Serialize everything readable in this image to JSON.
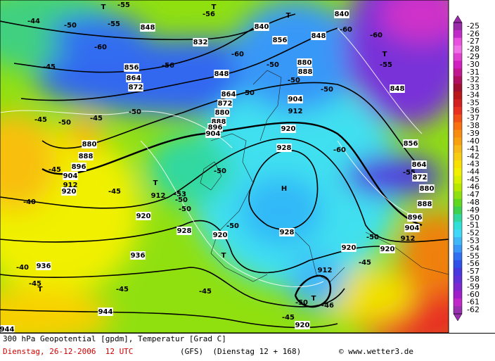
{
  "map": {
    "labels": [
      "T",
      "-55",
      "-56",
      "T",
      "T",
      "840",
      "-44",
      "-50",
      "-55",
      "848",
      "840",
      "856",
      "848",
      "-60",
      "-60",
      "-60",
      "832",
      "-60",
      "T",
      "-55",
      "-45",
      "856",
      "-56",
      "864",
      "872",
      "848",
      "-50",
      "880",
      "888",
      "-50",
      "-50",
      "848",
      "864",
      "-50",
      "872",
      "904",
      "912",
      "880",
      "-50",
      "-45",
      "-50",
      "-45",
      "888",
      "896",
      "904",
      "920",
      "880",
      "888",
      "896",
      "904",
      "912",
      "928",
      "-60",
      "856",
      "-45",
      "920",
      "T",
      "-50",
      "864",
      "-55",
      "872",
      "912",
      "-53",
      "-50",
      "-45",
      "H",
      "880",
      "-40",
      "888",
      "-50",
      "920",
      "896",
      "904",
      "928",
      "-50",
      "920",
      "928",
      "912",
      "-50",
      "920",
      "920",
      "T",
      "936",
      "-45",
      "-40",
      "936",
      "912",
      "-45",
      "T",
      "-45",
      "-45",
      "T",
      "-50",
      "-46",
      "944",
      "-45",
      "920",
      "944"
    ]
  },
  "legend": {
    "items": [
      {
        "label": "-25",
        "color": "#9a2aa8"
      },
      {
        "label": "-26",
        "color": "#c02cc8"
      },
      {
        "label": "-27",
        "color": "#e850e0"
      },
      {
        "label": "-28",
        "color": "#f070e8"
      },
      {
        "label": "-29",
        "color": "#e040d0"
      },
      {
        "label": "-30",
        "color": "#d020c0"
      },
      {
        "label": "-31",
        "color": "#c01890"
      },
      {
        "label": "-32",
        "color": "#b01060"
      },
      {
        "label": "-33",
        "color": "#a01030"
      },
      {
        "label": "-34",
        "color": "#b81818"
      },
      {
        "label": "-35",
        "color": "#d02020"
      },
      {
        "label": "-36",
        "color": "#e83020"
      },
      {
        "label": "-37",
        "color": "#f05018"
      },
      {
        "label": "-38",
        "color": "#f87010"
      },
      {
        "label": "-39",
        "color": "#f88c10"
      },
      {
        "label": "-40",
        "color": "#f8a010"
      },
      {
        "label": "-41",
        "color": "#f8b818"
      },
      {
        "label": "-42",
        "color": "#f8cc10"
      },
      {
        "label": "-43",
        "color": "#f8e000"
      },
      {
        "label": "-44",
        "color": "#f0f000"
      },
      {
        "label": "-45",
        "color": "#d8f000"
      },
      {
        "label": "-46",
        "color": "#b8e800"
      },
      {
        "label": "-47",
        "color": "#90e010"
      },
      {
        "label": "-48",
        "color": "#60d820"
      },
      {
        "label": "-49",
        "color": "#40d050"
      },
      {
        "label": "-50",
        "color": "#30d8a0"
      },
      {
        "label": "-51",
        "color": "#30e0d8"
      },
      {
        "label": "-52",
        "color": "#40d8f8"
      },
      {
        "label": "-53",
        "color": "#40b8f8"
      },
      {
        "label": "-54",
        "color": "#3898f8"
      },
      {
        "label": "-55",
        "color": "#3070f0"
      },
      {
        "label": "-56",
        "color": "#3050e8"
      },
      {
        "label": "-57",
        "color": "#4838e0"
      },
      {
        "label": "-58",
        "color": "#6030d8"
      },
      {
        "label": "-59",
        "color": "#8028d0"
      },
      {
        "label": "-60",
        "color": "#a020c8"
      },
      {
        "label": "-61",
        "color": "#c028c8"
      },
      {
        "label": "-62",
        "color": "#9830b0"
      }
    ]
  },
  "footer": {
    "line1": "300 hPa Geopotential [gpdm], Temperatur [Grad C]",
    "date": "Dienstag, 26-12-2006  12 UTC",
    "model": "(GFS)  (Dienstag 12 + 168)",
    "copyright": "© www.wetter3.de"
  }
}
